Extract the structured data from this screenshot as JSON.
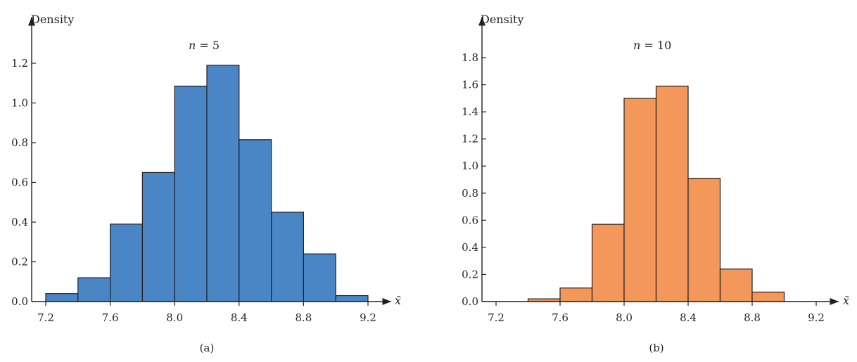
{
  "chart_data": [
    {
      "type": "bar",
      "panel": "(a)",
      "title_n": "5",
      "ylabel": "Density",
      "xlabel": "x̄",
      "bins": [
        {
          "x0": 7.2,
          "x1": 7.4,
          "y": 0.04
        },
        {
          "x0": 7.4,
          "x1": 7.6,
          "y": 0.12
        },
        {
          "x0": 7.6,
          "x1": 7.8,
          "y": 0.39
        },
        {
          "x0": 7.8,
          "x1": 8.0,
          "y": 0.65
        },
        {
          "x0": 8.0,
          "x1": 8.2,
          "y": 1.085
        },
        {
          "x0": 8.2,
          "x1": 8.4,
          "y": 1.19
        },
        {
          "x0": 8.4,
          "x1": 8.6,
          "y": 0.815
        },
        {
          "x0": 8.6,
          "x1": 8.8,
          "y": 0.45
        },
        {
          "x0": 8.8,
          "x1": 9.0,
          "y": 0.24
        },
        {
          "x0": 9.0,
          "x1": 9.2,
          "y": 0.03
        }
      ],
      "xlim": [
        7.2,
        9.2
      ],
      "xticks": [
        "7.2",
        "7.6",
        "8.0",
        "8.4",
        "8.8",
        "9.2"
      ],
      "ylim": [
        0,
        1.2
      ],
      "yticks": [
        "0.0",
        "0.2",
        "0.4",
        "0.6",
        "0.8",
        "1.0",
        "1.2"
      ],
      "bar_color": "#4a86c5"
    },
    {
      "type": "bar",
      "panel": "(b)",
      "title_n": "10",
      "ylabel": "Density",
      "xlabel": "x̄",
      "bins": [
        {
          "x0": 7.4,
          "x1": 7.6,
          "y": 0.02
        },
        {
          "x0": 7.6,
          "x1": 7.8,
          "y": 0.1
        },
        {
          "x0": 7.8,
          "x1": 8.0,
          "y": 0.57
        },
        {
          "x0": 8.0,
          "x1": 8.2,
          "y": 1.5
        },
        {
          "x0": 8.2,
          "x1": 8.4,
          "y": 1.59
        },
        {
          "x0": 8.4,
          "x1": 8.6,
          "y": 0.91
        },
        {
          "x0": 8.6,
          "x1": 8.8,
          "y": 0.24
        },
        {
          "x0": 8.8,
          "x1": 9.0,
          "y": 0.07
        }
      ],
      "xlim": [
        7.2,
        9.2
      ],
      "xticks": [
        "7.2",
        "7.6",
        "8.0",
        "8.4",
        "8.8",
        "9.2"
      ],
      "ylim": [
        0,
        1.8
      ],
      "yticks": [
        "0.0",
        "0.2",
        "0.4",
        "0.6",
        "0.8",
        "1.0",
        "1.2",
        "1.4",
        "1.6",
        "1.8"
      ],
      "bar_color": "#f4975a"
    }
  ]
}
